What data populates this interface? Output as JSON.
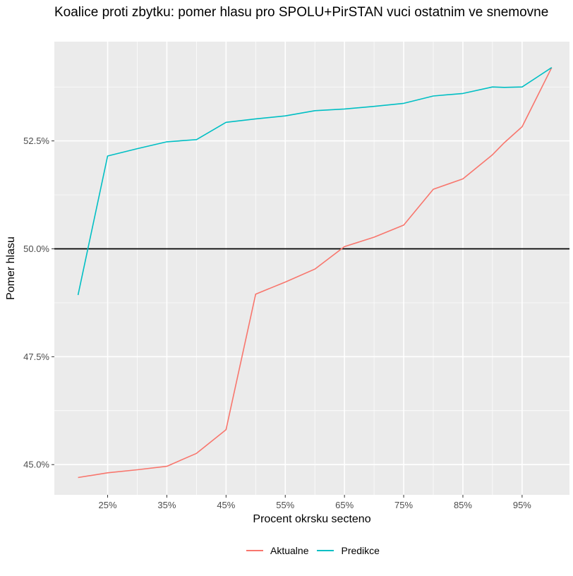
{
  "title": "Koalice proti zbytku: pomer hlasu pro SPOLU+PirSTAN vuci ostatnim ve snemovne",
  "chart_data": {
    "type": "line",
    "xlabel": "Procent okrsku secteno",
    "ylabel": "Pomer hlasu",
    "x": [
      20,
      25,
      30,
      35,
      40,
      45,
      50,
      55,
      60,
      65,
      70,
      75,
      80,
      85,
      90,
      92,
      95,
      100
    ],
    "x_ticks": [
      25,
      35,
      45,
      55,
      65,
      75,
      85,
      95
    ],
    "x_tick_labels": [
      "25%",
      "35%",
      "45%",
      "55%",
      "65%",
      "75%",
      "85%",
      "95%"
    ],
    "xlim": [
      16,
      103
    ],
    "y_ticks": [
      45.0,
      47.5,
      50.0,
      52.5
    ],
    "y_tick_labels": [
      "45.0%",
      "47.5%",
      "50.0%",
      "52.5%"
    ],
    "ylim": [
      44.3,
      54.8
    ],
    "hline": 50.0,
    "grid": true,
    "legend_position": "bottom",
    "series": [
      {
        "name": "Aktualne",
        "color": "#F8766D",
        "values": [
          44.7,
          44.81,
          44.88,
          44.96,
          45.26,
          45.81,
          48.95,
          49.23,
          49.53,
          50.05,
          50.27,
          50.55,
          51.38,
          51.62,
          52.18,
          52.46,
          52.83,
          54.2
        ]
      },
      {
        "name": "Predikce",
        "color": "#00BFC4",
        "values": [
          48.93,
          52.15,
          52.32,
          52.48,
          52.53,
          52.93,
          53.01,
          53.08,
          53.2,
          53.24,
          53.3,
          53.37,
          53.54,
          53.6,
          53.75,
          53.74,
          53.75,
          54.2
        ]
      }
    ]
  }
}
